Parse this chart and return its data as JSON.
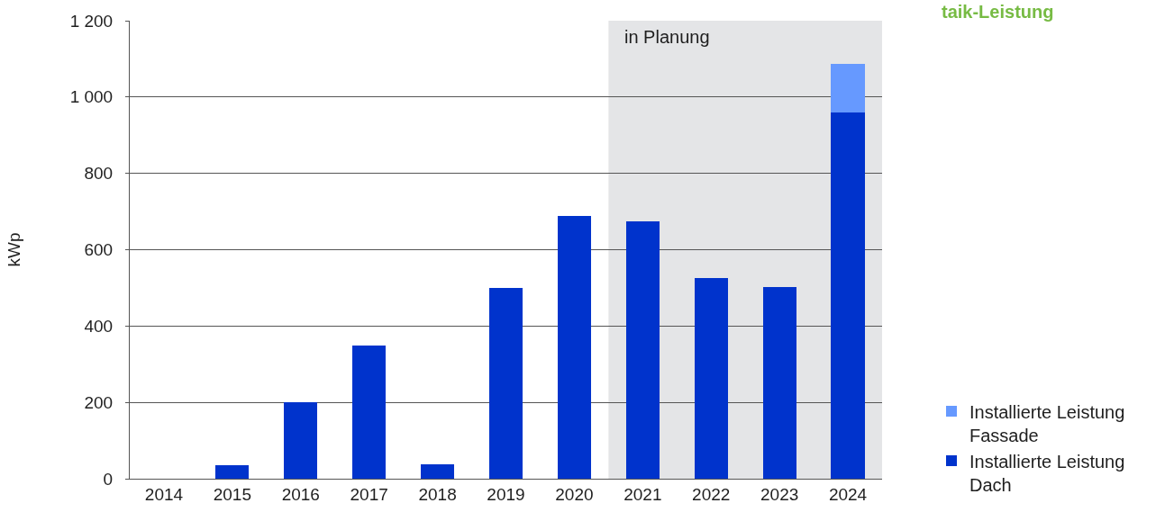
{
  "chart_data": {
    "type": "bar",
    "ylabel": "kWp",
    "categories": [
      "2014",
      "2015",
      "2016",
      "2017",
      "2018",
      "2019",
      "2020",
      "2021",
      "2022",
      "2023",
      "2024"
    ],
    "series": [
      {
        "name": "Installierte Leistung Dach",
        "color": "#0033cc",
        "values": [
          0,
          36,
          200,
          350,
          38,
          500,
          689,
          675,
          525,
          502,
          960
        ]
      },
      {
        "name": "Installierte Leistung Fassade",
        "color": "#6699ff",
        "values": [
          null,
          null,
          null,
          null,
          null,
          null,
          null,
          null,
          null,
          null,
          127
        ]
      }
    ],
    "stacked": true,
    "ylim": [
      0,
      1200
    ],
    "yticks": [
      0,
      200,
      400,
      600,
      800,
      {
        "value": 1000,
        "label": "1 000"
      },
      {
        "value": 1200,
        "label": "1 200"
      }
    ],
    "grid": "y",
    "legend": "bottom right",
    "bands": [
      {
        "axis": "x",
        "from": "2021",
        "to": "2024",
        "label": "in Planung",
        "color": "#e4e5e7"
      }
    ],
    "annotations": [
      "taik-Leistung"
    ]
  }
}
